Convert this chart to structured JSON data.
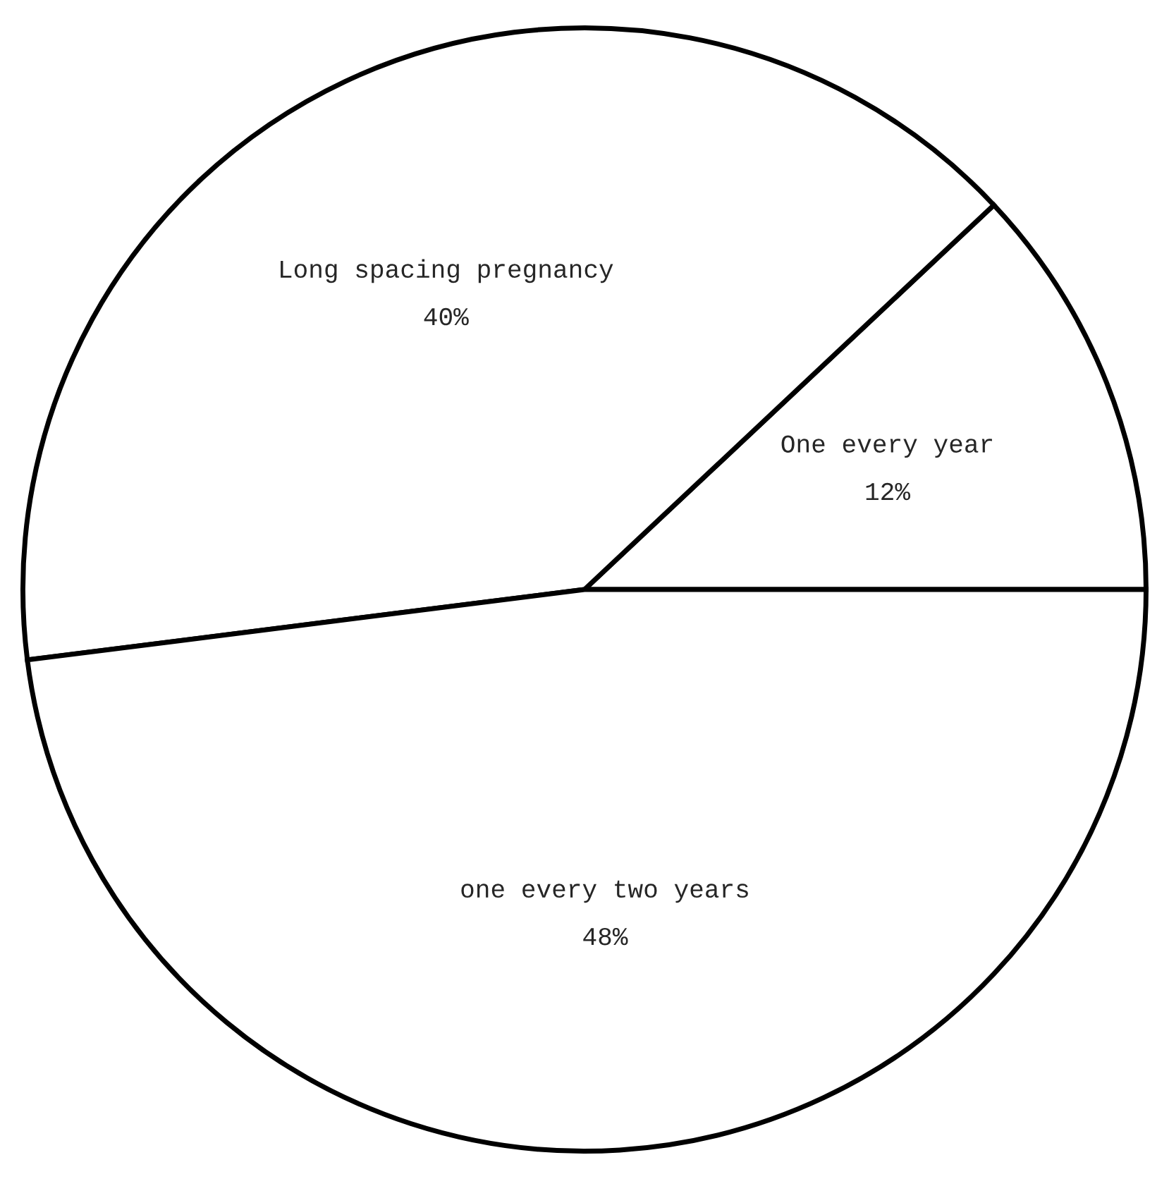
{
  "chart_data": {
    "type": "pie",
    "categories": [
      "One every year",
      "Long spacing pregnancy",
      "one every two years"
    ],
    "values": [
      12,
      40,
      48
    ],
    "value_labels": [
      "12%",
      "40%",
      "48%"
    ],
    "colors": [
      "#ffffff",
      "#ffffff",
      "#ffffff"
    ]
  }
}
